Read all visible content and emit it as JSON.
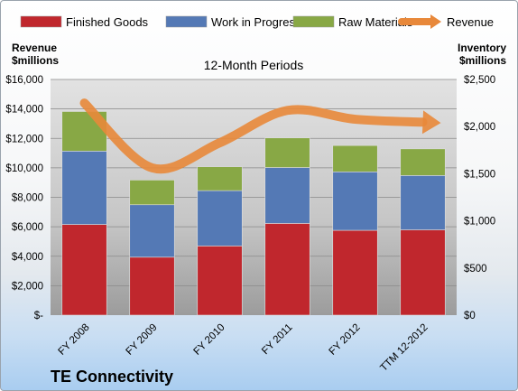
{
  "chart_data": {
    "type": "bar",
    "stacked": true,
    "subtitle": "12-Month Periods",
    "company": "TE Connectivity",
    "categories": [
      "FY 2008",
      "FY 2009",
      "FY 2010",
      "FY 2011",
      "FY 2012",
      "TTM 12-2012"
    ],
    "left_axis": {
      "label_line1": "Revenue",
      "label_line2": "$millions",
      "ylim": [
        0,
        16000
      ],
      "ticks": [
        "$-",
        "$2,000",
        "$4,000",
        "$6,000",
        "$8,000",
        "$10,000",
        "$12,000",
        "$14,000",
        "$16,000"
      ]
    },
    "right_axis": {
      "label_line1": "Inventory",
      "label_line2": "$millions",
      "ylim": [
        0,
        2500
      ],
      "ticks": [
        "$0",
        "$500",
        "$1,000",
        "$1,500",
        "$2,000",
        "$2,500"
      ]
    },
    "series": [
      {
        "name": "Finished Goods",
        "axis": "right",
        "kind": "bar",
        "color": "#c0272d",
        "values": [
          962,
          615,
          734,
          973,
          900,
          905
        ]
      },
      {
        "name": "Work in Progress",
        "axis": "right",
        "kind": "bar",
        "color": "#5479b5",
        "values": [
          778,
          556,
          587,
          593,
          620,
          576
        ]
      },
      {
        "name": "Raw Materials",
        "axis": "right",
        "kind": "bar",
        "color": "#88a845",
        "values": [
          420,
          262,
          253,
          314,
          279,
          283
        ]
      },
      {
        "name": "Revenue",
        "axis": "left",
        "kind": "line",
        "color": "#e8883a",
        "values": [
          14400,
          10000,
          11700,
          13900,
          13300,
          13100
        ]
      }
    ],
    "grid": true,
    "legend": "top"
  }
}
